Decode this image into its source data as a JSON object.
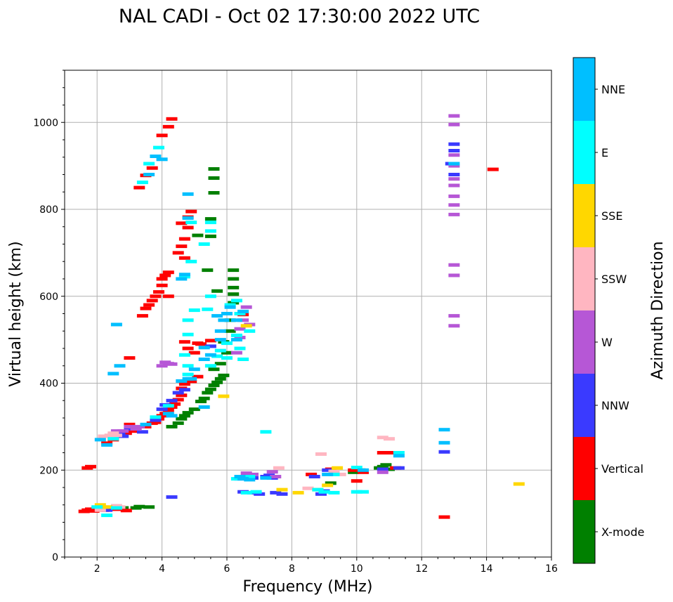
{
  "chart_data": {
    "type": "scatter",
    "title": "NAL CADI - Oct 02 17:30:00 2022 UTC",
    "xlabel": "Frequency (MHz)",
    "ylabel": "Virtual height (km)",
    "xlim": [
      1,
      16
    ],
    "ylim": [
      0,
      1120
    ],
    "xticks": [
      2,
      4,
      6,
      8,
      10,
      12,
      14,
      16
    ],
    "yticks": [
      0,
      200,
      400,
      600,
      800,
      1000
    ],
    "grid": true,
    "colorbar": {
      "label": "Azimuth Direction",
      "categories": [
        {
          "name": "X-mode",
          "color": "#008000"
        },
        {
          "name": "Vertical",
          "color": "#ff0000"
        },
        {
          "name": "NNW",
          "color": "#3a3aff"
        },
        {
          "name": "W",
          "color": "#b657d6"
        },
        {
          "name": "SSW",
          "color": "#ffb6c1"
        },
        {
          "name": "SSE",
          "color": "#ffd700"
        },
        {
          "name": "E",
          "color": "#00ffff"
        },
        {
          "name": "NNE",
          "color": "#00bfff"
        }
      ]
    },
    "series": [
      {
        "name": "X-mode",
        "color": "#008000",
        "points": [
          [
            2.8,
            113
          ],
          [
            3.2,
            113
          ],
          [
            3.3,
            116
          ],
          [
            3.6,
            115
          ],
          [
            4.3,
            300
          ],
          [
            4.5,
            308
          ],
          [
            4.6,
            318
          ],
          [
            4.7,
            325
          ],
          [
            4.8,
            332
          ],
          [
            5.0,
            340
          ],
          [
            5.2,
            358
          ],
          [
            5.3,
            365
          ],
          [
            5.4,
            378
          ],
          [
            5.5,
            386
          ],
          [
            5.6,
            395
          ],
          [
            5.7,
            402
          ],
          [
            5.8,
            410
          ],
          [
            5.9,
            418
          ],
          [
            5.6,
            432
          ],
          [
            5.8,
            445
          ],
          [
            6.0,
            470
          ],
          [
            5.9,
            495
          ],
          [
            6.1,
            520
          ],
          [
            6.1,
            545
          ],
          [
            6.2,
            585
          ],
          [
            6.2,
            605
          ],
          [
            6.2,
            620
          ],
          [
            6.2,
            640
          ],
          [
            6.2,
            660
          ],
          [
            5.7,
            612
          ],
          [
            5.5,
            738
          ],
          [
            5.5,
            778
          ],
          [
            5.6,
            838
          ],
          [
            5.6,
            872
          ],
          [
            5.6,
            893
          ],
          [
            5.4,
            660
          ],
          [
            5.1,
            740
          ],
          [
            9.2,
            170
          ],
          [
            9.9,
            195
          ],
          [
            10.1,
            200
          ],
          [
            10.8,
            208
          ],
          [
            10.7,
            205
          ],
          [
            10.9,
            212
          ],
          [
            11.0,
            202
          ]
        ]
      },
      {
        "name": "Vertical",
        "color": "#ff0000",
        "points": [
          [
            1.6,
            105
          ],
          [
            1.7,
            108
          ],
          [
            1.8,
            110
          ],
          [
            1.9,
            106
          ],
          [
            2.0,
            112
          ],
          [
            2.2,
            108
          ],
          [
            2.5,
            112
          ],
          [
            2.6,
            110
          ],
          [
            2.9,
            107
          ],
          [
            1.7,
            205
          ],
          [
            1.8,
            208
          ],
          [
            2.3,
            262
          ],
          [
            2.5,
            270
          ],
          [
            2.7,
            280
          ],
          [
            2.9,
            285
          ],
          [
            3.1,
            290
          ],
          [
            3.2,
            290
          ],
          [
            3.5,
            300
          ],
          [
            3.7,
            308
          ],
          [
            3.8,
            310
          ],
          [
            3.9,
            318
          ],
          [
            4.0,
            325
          ],
          [
            4.1,
            330
          ],
          [
            4.2,
            338
          ],
          [
            4.3,
            345
          ],
          [
            4.4,
            352
          ],
          [
            4.5,
            362
          ],
          [
            4.6,
            372
          ],
          [
            4.6,
            388
          ],
          [
            4.7,
            398
          ],
          [
            4.9,
            404
          ],
          [
            5.1,
            415
          ],
          [
            3.0,
            305
          ],
          [
            3.0,
            458
          ],
          [
            3.4,
            555
          ],
          [
            3.5,
            572
          ],
          [
            3.6,
            580
          ],
          [
            3.7,
            590
          ],
          [
            3.8,
            600
          ],
          [
            3.9,
            610
          ],
          [
            4.0,
            625
          ],
          [
            4.0,
            640
          ],
          [
            4.1,
            648
          ],
          [
            4.2,
            655
          ],
          [
            4.2,
            600
          ],
          [
            4.7,
            495
          ],
          [
            4.8,
            480
          ],
          [
            5.1,
            492
          ],
          [
            5.2,
            490
          ],
          [
            5.0,
            470
          ],
          [
            4.7,
            688
          ],
          [
            4.5,
            700
          ],
          [
            4.6,
            715
          ],
          [
            4.7,
            732
          ],
          [
            4.8,
            758
          ],
          [
            4.6,
            768
          ],
          [
            4.8,
            782
          ],
          [
            4.9,
            795
          ],
          [
            5.5,
            498
          ],
          [
            3.3,
            850
          ],
          [
            3.5,
            878
          ],
          [
            3.7,
            895
          ],
          [
            4.0,
            970
          ],
          [
            4.2,
            990
          ],
          [
            4.3,
            1008
          ],
          [
            8.6,
            190
          ],
          [
            9.2,
            202
          ],
          [
            9.9,
            200
          ],
          [
            10.0,
            175
          ],
          [
            10.2,
            195
          ],
          [
            10.8,
            240
          ],
          [
            11.0,
            240
          ],
          [
            11.2,
            205
          ],
          [
            12.7,
            92
          ],
          [
            14.2,
            892
          ],
          [
            6.5,
            558
          ]
        ]
      },
      {
        "name": "NNW",
        "color": "#3a3aff",
        "points": [
          [
            2.7,
            285
          ],
          [
            2.8,
            278
          ],
          [
            3.0,
            295
          ],
          [
            3.2,
            298
          ],
          [
            3.4,
            288
          ],
          [
            3.8,
            315
          ],
          [
            4.0,
            340
          ],
          [
            4.1,
            350
          ],
          [
            4.3,
            360
          ],
          [
            4.5,
            378
          ],
          [
            4.7,
            385
          ],
          [
            5.5,
            485
          ],
          [
            6.5,
            150
          ],
          [
            6.8,
            148
          ],
          [
            7.0,
            145
          ],
          [
            7.5,
            148
          ],
          [
            7.7,
            145
          ],
          [
            8.9,
            145
          ],
          [
            9.0,
            152
          ],
          [
            7.3,
            188
          ],
          [
            7.4,
            182
          ],
          [
            10.8,
            202
          ],
          [
            11.3,
            205
          ],
          [
            12.7,
            242
          ],
          [
            13.0,
            935
          ],
          [
            12.9,
            905
          ],
          [
            13.0,
            880
          ],
          [
            13.0,
            950
          ],
          [
            4.3,
            138
          ],
          [
            6.4,
            180
          ],
          [
            6.8,
            182
          ],
          [
            7.2,
            185
          ],
          [
            9.1,
            200
          ],
          [
            8.7,
            185
          ],
          [
            2.1,
            112
          ],
          [
            2.3,
            108
          ]
        ]
      },
      {
        "name": "W",
        "color": "#b657d6",
        "points": [
          [
            2.8,
            290
          ],
          [
            3.0,
            300
          ],
          [
            3.2,
            295
          ],
          [
            3.3,
            300
          ],
          [
            4.0,
            440
          ],
          [
            4.2,
            445
          ],
          [
            4.3,
            444
          ],
          [
            6.6,
            575
          ],
          [
            6.5,
            545
          ],
          [
            6.4,
            525
          ],
          [
            6.4,
            505
          ],
          [
            6.7,
            535
          ],
          [
            6.6,
            193
          ],
          [
            6.8,
            190
          ],
          [
            7.4,
            196
          ],
          [
            7.5,
            185
          ],
          [
            10.8,
            195
          ],
          [
            13.0,
            1015
          ],
          [
            13.0,
            995
          ],
          [
            13.0,
            925
          ],
          [
            13.0,
            900
          ],
          [
            13.0,
            870
          ],
          [
            13.0,
            855
          ],
          [
            13.0,
            830
          ],
          [
            13.0,
            810
          ],
          [
            13.0,
            788
          ],
          [
            13.0,
            672
          ],
          [
            13.0,
            648
          ],
          [
            13.0,
            555
          ],
          [
            13.0,
            532
          ],
          [
            2.6,
            290
          ],
          [
            6.3,
            470
          ],
          [
            4.1,
            448
          ]
        ]
      },
      {
        "name": "SSW",
        "color": "#ffb6c1",
        "points": [
          [
            2.2,
            278
          ],
          [
            2.4,
            280
          ],
          [
            2.6,
            280
          ],
          [
            2.1,
            108
          ],
          [
            2.2,
            115
          ],
          [
            2.6,
            118
          ],
          [
            2.7,
            115
          ],
          [
            8.9,
            237
          ],
          [
            10.8,
            275
          ],
          [
            11.0,
            272
          ],
          [
            7.6,
            205
          ],
          [
            9.3,
            197
          ],
          [
            9.5,
            190
          ],
          [
            8.5,
            158
          ],
          [
            2.5,
            285
          ]
        ]
      },
      {
        "name": "SSE",
        "color": "#ffd700",
        "points": [
          [
            2.1,
            120
          ],
          [
            2.3,
            115
          ],
          [
            5.9,
            370
          ],
          [
            6.6,
            532
          ],
          [
            7.7,
            155
          ],
          [
            8.2,
            148
          ],
          [
            8.8,
            155
          ],
          [
            9.1,
            165
          ],
          [
            15.0,
            168
          ],
          [
            9.4,
            205
          ]
        ]
      },
      {
        "name": "E",
        "color": "#00ffff",
        "points": [
          [
            2.0,
            115
          ],
          [
            2.3,
            96
          ],
          [
            2.6,
            113
          ],
          [
            4.8,
            420
          ],
          [
            5.5,
            440
          ],
          [
            5.7,
            462
          ],
          [
            5.8,
            475
          ],
          [
            6.0,
            492
          ],
          [
            6.3,
            510
          ],
          [
            6.4,
            480
          ],
          [
            6.5,
            455
          ],
          [
            6.4,
            560
          ],
          [
            6.7,
            520
          ],
          [
            5.5,
            600
          ],
          [
            5.4,
            570
          ],
          [
            6.3,
            590
          ],
          [
            6.1,
            580
          ],
          [
            5.0,
            568
          ],
          [
            4.8,
            545
          ],
          [
            4.8,
            512
          ],
          [
            4.7,
            465
          ],
          [
            4.8,
            440
          ],
          [
            8.8,
            155
          ],
          [
            9.0,
            150
          ],
          [
            9.3,
            148
          ],
          [
            10.0,
            150
          ],
          [
            10.2,
            150
          ],
          [
            6.6,
            148
          ],
          [
            6.9,
            150
          ],
          [
            7.2,
            288
          ],
          [
            11.3,
            240
          ],
          [
            10.0,
            206
          ],
          [
            9.3,
            190
          ],
          [
            4.7,
            645
          ],
          [
            4.9,
            680
          ],
          [
            5.3,
            720
          ],
          [
            5.5,
            750
          ],
          [
            5.5,
            770
          ],
          [
            4.9,
            770
          ],
          [
            3.9,
            942
          ],
          [
            3.6,
            905
          ],
          [
            3.4,
            862
          ],
          [
            6.3,
            180
          ],
          [
            6.7,
            185
          ],
          [
            6.0,
            458
          ],
          [
            4.2,
            348
          ],
          [
            3.8,
            322
          ],
          [
            2.5,
            272
          ]
        ]
      },
      {
        "name": "NNE",
        "color": "#00bfff",
        "points": [
          [
            2.1,
            270
          ],
          [
            2.3,
            258
          ],
          [
            3.5,
            305
          ],
          [
            4.6,
            405
          ],
          [
            4.8,
            410
          ],
          [
            5.0,
            432
          ],
          [
            5.3,
            455
          ],
          [
            5.5,
            465
          ],
          [
            5.8,
            500
          ],
          [
            5.8,
            520
          ],
          [
            5.9,
            545
          ],
          [
            6.0,
            560
          ],
          [
            6.1,
            575
          ],
          [
            6.3,
            500
          ],
          [
            6.3,
            545
          ],
          [
            6.5,
            565
          ],
          [
            5.7,
            555
          ],
          [
            5.3,
            482
          ],
          [
            5.3,
            345
          ],
          [
            4.2,
            330
          ],
          [
            4.3,
            325
          ],
          [
            4.8,
            835
          ],
          [
            4.8,
            780
          ],
          [
            4.6,
            640
          ],
          [
            4.7,
            650
          ],
          [
            4.0,
            915
          ],
          [
            3.8,
            922
          ],
          [
            3.6,
            880
          ],
          [
            2.7,
            440
          ],
          [
            2.6,
            535
          ],
          [
            2.5,
            422
          ],
          [
            6.5,
            180
          ],
          [
            6.7,
            178
          ],
          [
            7.2,
            182
          ],
          [
            9.1,
            190
          ],
          [
            10.2,
            200
          ],
          [
            11.3,
            233
          ],
          [
            12.7,
            293
          ],
          [
            12.7,
            263
          ],
          [
            13.0,
            905
          ],
          [
            6.4,
            185
          ],
          [
            4.9,
            410
          ]
        ]
      }
    ]
  }
}
